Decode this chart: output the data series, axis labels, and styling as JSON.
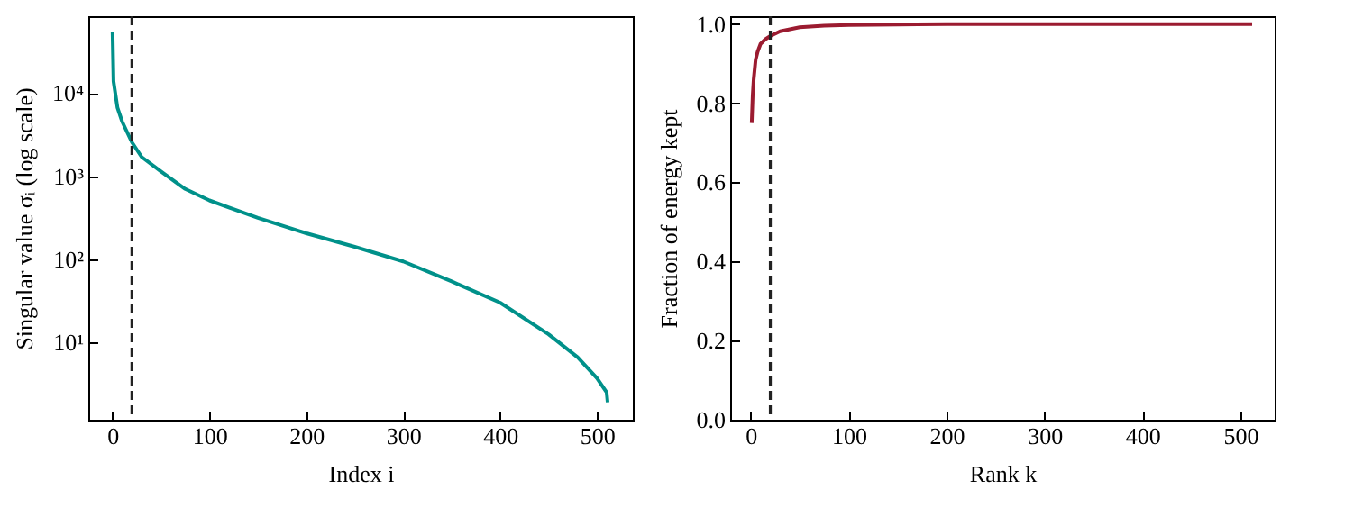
{
  "chart_data": [
    {
      "type": "line",
      "xlabel": "Index i",
      "ylabel": "Singular value σᵢ (log scale)",
      "log": "y",
      "grid": false,
      "line_style": "solid",
      "xlim": [
        -25,
        537
      ],
      "xticks": [
        0,
        100,
        200,
        300,
        400,
        500
      ],
      "ylim": [
        1.17,
        84000
      ],
      "yticks": [
        {
          "value": 10,
          "label": "10¹"
        },
        {
          "value": 100,
          "label": "10²"
        },
        {
          "value": 1000,
          "label": "10³"
        },
        {
          "value": 10000,
          "label": "10⁴"
        }
      ],
      "ref_lines": [
        {
          "axis": "x",
          "value": 20,
          "color": "#222222",
          "line_style": "dashed"
        }
      ],
      "series": [
        {
          "color": "#00918a",
          "x": [
            0,
            1,
            5,
            10,
            20,
            30,
            50,
            75,
            100,
            150,
            200,
            250,
            300,
            350,
            400,
            450,
            480,
            500,
            510,
            511
          ],
          "values": [
            54000,
            13800,
            6700,
            4500,
            2550,
            1700,
            1140,
            700,
            510,
            315,
            205,
            141,
            94,
            54,
            30,
            12.5,
            6.6,
            3.7,
            2.5,
            1.9
          ]
        }
      ]
    },
    {
      "type": "line",
      "xlabel": "Rank k",
      "ylabel": "Fraction of energy kept",
      "grid": false,
      "line_style": "solid",
      "xlim": [
        -21,
        535
      ],
      "xticks": [
        0,
        100,
        200,
        300,
        400,
        500
      ],
      "ylim": [
        0,
        1.02
      ],
      "yticks": [
        {
          "value": 0,
          "label": "0.0"
        },
        {
          "value": 0.2,
          "label": "0.2"
        },
        {
          "value": 0.4,
          "label": "0.4"
        },
        {
          "value": 0.6,
          "label": "0.6"
        },
        {
          "value": 0.8,
          "label": "0.8"
        },
        {
          "value": 1,
          "label": "1.0"
        }
      ],
      "ref_lines": [
        {
          "axis": "x",
          "value": 20,
          "color": "#222222",
          "line_style": "dashed"
        }
      ],
      "series": [
        {
          "color": "#9b1b30",
          "x": [
            1,
            2,
            3,
            5,
            7,
            10,
            15,
            20,
            30,
            50,
            75,
            100,
            150,
            200,
            300,
            400,
            512
          ],
          "values": [
            0.75,
            0.82,
            0.86,
            0.91,
            0.93,
            0.95,
            0.962,
            0.97,
            0.982,
            0.992,
            0.996,
            0.998,
            0.999,
            1.0,
            1.0,
            1.0,
            1.0
          ]
        }
      ]
    }
  ]
}
